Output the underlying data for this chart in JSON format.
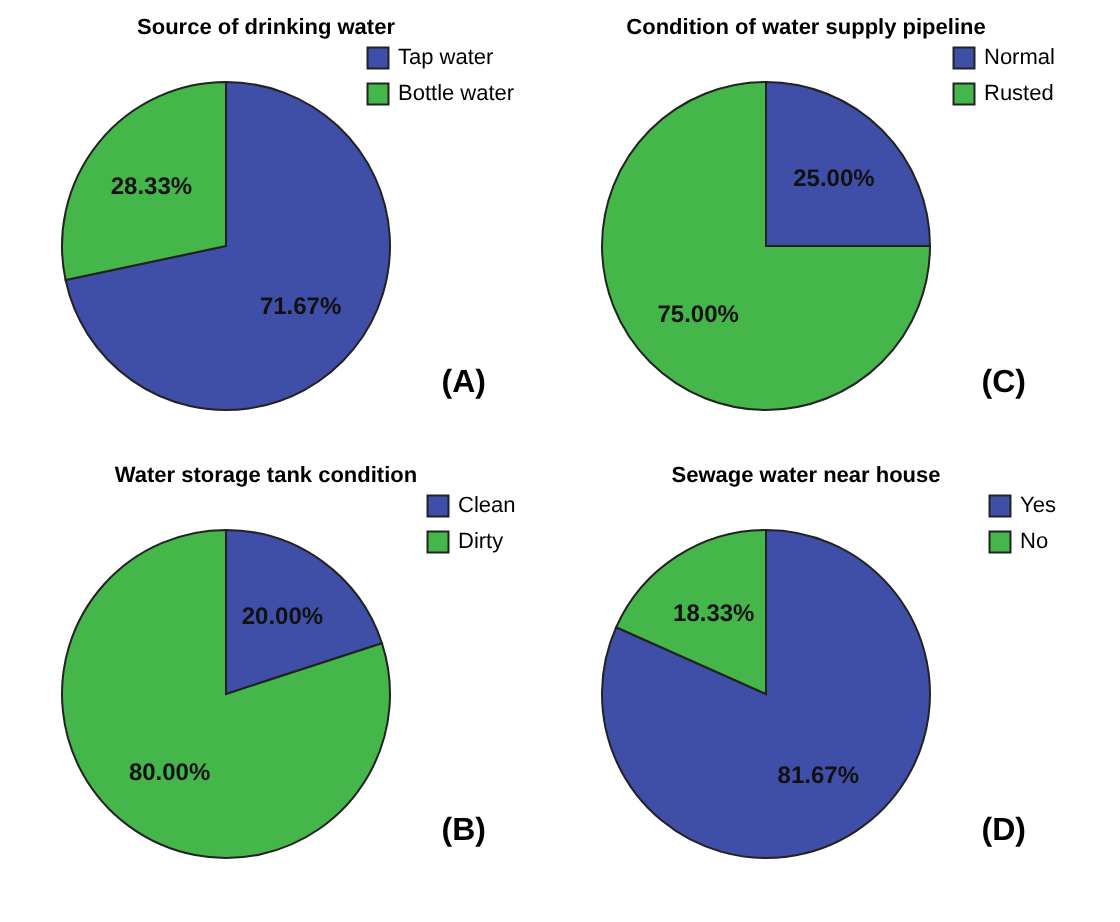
{
  "chart_data": [
    {
      "type": "pie",
      "title": "Source of drinking water",
      "categories": [
        "Tap water",
        "Bottle water"
      ],
      "values": [
        71.67,
        28.33
      ],
      "colors": [
        "#3f4fa8",
        "#45b64a"
      ],
      "value_labels": [
        "71.67%",
        "28.33%"
      ],
      "legend": "top right",
      "annotations": [
        "(A)"
      ]
    },
    {
      "type": "pie",
      "title": "Condition of water supply pipeline",
      "categories": [
        "Normal",
        "Rusted"
      ],
      "values": [
        25.0,
        75.0
      ],
      "colors": [
        "#3f4fa8",
        "#45b64a"
      ],
      "value_labels": [
        "25.00%",
        "75.00%"
      ],
      "legend": "top right",
      "annotations": [
        "(C)"
      ]
    },
    {
      "type": "pie",
      "title": "Water storage tank condition",
      "categories": [
        "Clean",
        "Dirty"
      ],
      "values": [
        20.0,
        80.0
      ],
      "colors": [
        "#3f4fa8",
        "#45b64a"
      ],
      "value_labels": [
        "20.00%",
        "80.00%"
      ],
      "legend": "top right",
      "annotations": [
        "(B)"
      ]
    },
    {
      "type": "pie",
      "title": "Sewage water near house",
      "categories": [
        "Yes",
        "No"
      ],
      "values": [
        81.67,
        18.33
      ],
      "colors": [
        "#3f4fa8",
        "#45b64a"
      ],
      "value_labels": [
        "81.67%",
        "18.33%"
      ],
      "legend": "top right",
      "annotations": [
        "(D)"
      ]
    }
  ]
}
